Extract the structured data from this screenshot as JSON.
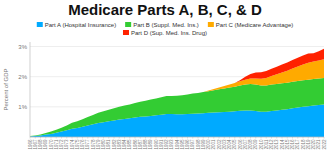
{
  "chart_data": {
    "type": "area",
    "stacked": true,
    "title": "Medicare Parts A, B, C, & D",
    "y_label": "Percent of GDP",
    "x": [
      1966,
      1967,
      1968,
      1969,
      1970,
      1971,
      1972,
      1973,
      1974,
      1975,
      1976,
      1977,
      1978,
      1979,
      1980,
      1981,
      1982,
      1983,
      1984,
      1985,
      1986,
      1987,
      1988,
      1989,
      1990,
      1991,
      1992,
      1993,
      1994,
      1995,
      1996,
      1997,
      1998,
      1999,
      2000,
      2001,
      2002,
      2003,
      2004,
      2005,
      2006,
      2007,
      2008,
      2009,
      2010,
      2011,
      2012,
      2013,
      2014,
      2015,
      2016,
      2017,
      2018,
      2019,
      2020,
      2021,
      2022
    ],
    "xlim": [
      1966,
      2022
    ],
    "xticks": [
      1966,
      1967,
      1968,
      1969,
      1970,
      1971,
      1972,
      1973,
      1974,
      1975,
      1976,
      1977,
      1978,
      1979,
      1980,
      1981,
      1982,
      1983,
      1984,
      1985,
      1986,
      1987,
      1988,
      1989,
      1990,
      1991,
      1992,
      1993,
      1994,
      1995,
      1996,
      1997,
      1998,
      1999,
      2000,
      2001,
      2002,
      2003,
      2004,
      2005,
      2006,
      2007,
      2008,
      2009,
      2010,
      2011,
      2012,
      2013,
      2014,
      2015,
      2016,
      2017,
      2018,
      2019,
      2020,
      2021,
      2022
    ],
    "ylim": [
      0,
      3.15
    ],
    "yticks": [
      {
        "value": 0,
        "label": null
      },
      {
        "value": 1,
        "label": "1%"
      },
      {
        "value": 2,
        "label": "2%"
      },
      {
        "value": 3,
        "label": "3%"
      }
    ],
    "grid": true,
    "legend": "top",
    "series": [
      {
        "name": "Part A (Hospital Insurance)",
        "color": "#00aaff",
        "values": [
          0.02,
          0.03,
          0.05,
          0.08,
          0.1,
          0.14,
          0.18,
          0.22,
          0.27,
          0.3,
          0.34,
          0.38,
          0.42,
          0.46,
          0.49,
          0.52,
          0.55,
          0.58,
          0.6,
          0.62,
          0.65,
          0.67,
          0.68,
          0.7,
          0.72,
          0.74,
          0.76,
          0.76,
          0.75,
          0.75,
          0.76,
          0.77,
          0.78,
          0.79,
          0.8,
          0.81,
          0.82,
          0.83,
          0.84,
          0.85,
          0.87,
          0.88,
          0.88,
          0.86,
          0.84,
          0.84,
          0.86,
          0.88,
          0.9,
          0.92,
          0.95,
          0.98,
          1.0,
          1.02,
          1.04,
          1.06,
          1.08
        ]
      },
      {
        "name": "Part B (Suppl. Med. Ins.)",
        "color": "#33cc33",
        "values": [
          0.01,
          0.02,
          0.03,
          0.05,
          0.08,
          0.1,
          0.13,
          0.16,
          0.2,
          0.22,
          0.25,
          0.28,
          0.31,
          0.34,
          0.36,
          0.38,
          0.4,
          0.42,
          0.44,
          0.46,
          0.48,
          0.5,
          0.52,
          0.54,
          0.56,
          0.58,
          0.6,
          0.6,
          0.62,
          0.63,
          0.65,
          0.67,
          0.68,
          0.7,
          0.72,
          0.74,
          0.76,
          0.78,
          0.8,
          0.82,
          0.84,
          0.86,
          0.88,
          0.88,
          0.87,
          0.87,
          0.88,
          0.88,
          0.88,
          0.88,
          0.88,
          0.88,
          0.88,
          0.88,
          0.88,
          0.88,
          0.88
        ]
      },
      {
        "name": "Part C (Medicare Advantage)",
        "color": "#ffaa00",
        "values": [
          0,
          0,
          0,
          0,
          0,
          0,
          0,
          0,
          0,
          0,
          0,
          0,
          0,
          0,
          0,
          0,
          0,
          0,
          0,
          0,
          0,
          0,
          0,
          0,
          0,
          0,
          0,
          0,
          0,
          0,
          0,
          0,
          0,
          0,
          0.02,
          0.04,
          0.06,
          0.08,
          0.1,
          0.12,
          0.14,
          0.16,
          0.18,
          0.2,
          0.22,
          0.25,
          0.28,
          0.32,
          0.36,
          0.4,
          0.44,
          0.48,
          0.52,
          0.56,
          0.58,
          0.6,
          0.62
        ]
      },
      {
        "name": "Part D (Sup. Med. Ins. Drug)",
        "color": "#ff2200",
        "values": [
          0,
          0,
          0,
          0,
          0,
          0,
          0,
          0,
          0,
          0,
          0,
          0,
          0,
          0,
          0,
          0,
          0,
          0,
          0,
          0,
          0,
          0,
          0,
          0,
          0,
          0,
          0,
          0,
          0,
          0,
          0,
          0,
          0,
          0,
          0,
          0,
          0,
          0,
          0,
          0,
          0.03,
          0.1,
          0.15,
          0.2,
          0.22,
          0.23,
          0.24,
          0.25,
          0.26,
          0.27,
          0.28,
          0.29,
          0.3,
          0.31,
          0.28,
          0.3,
          0.35
        ]
      }
    ]
  }
}
